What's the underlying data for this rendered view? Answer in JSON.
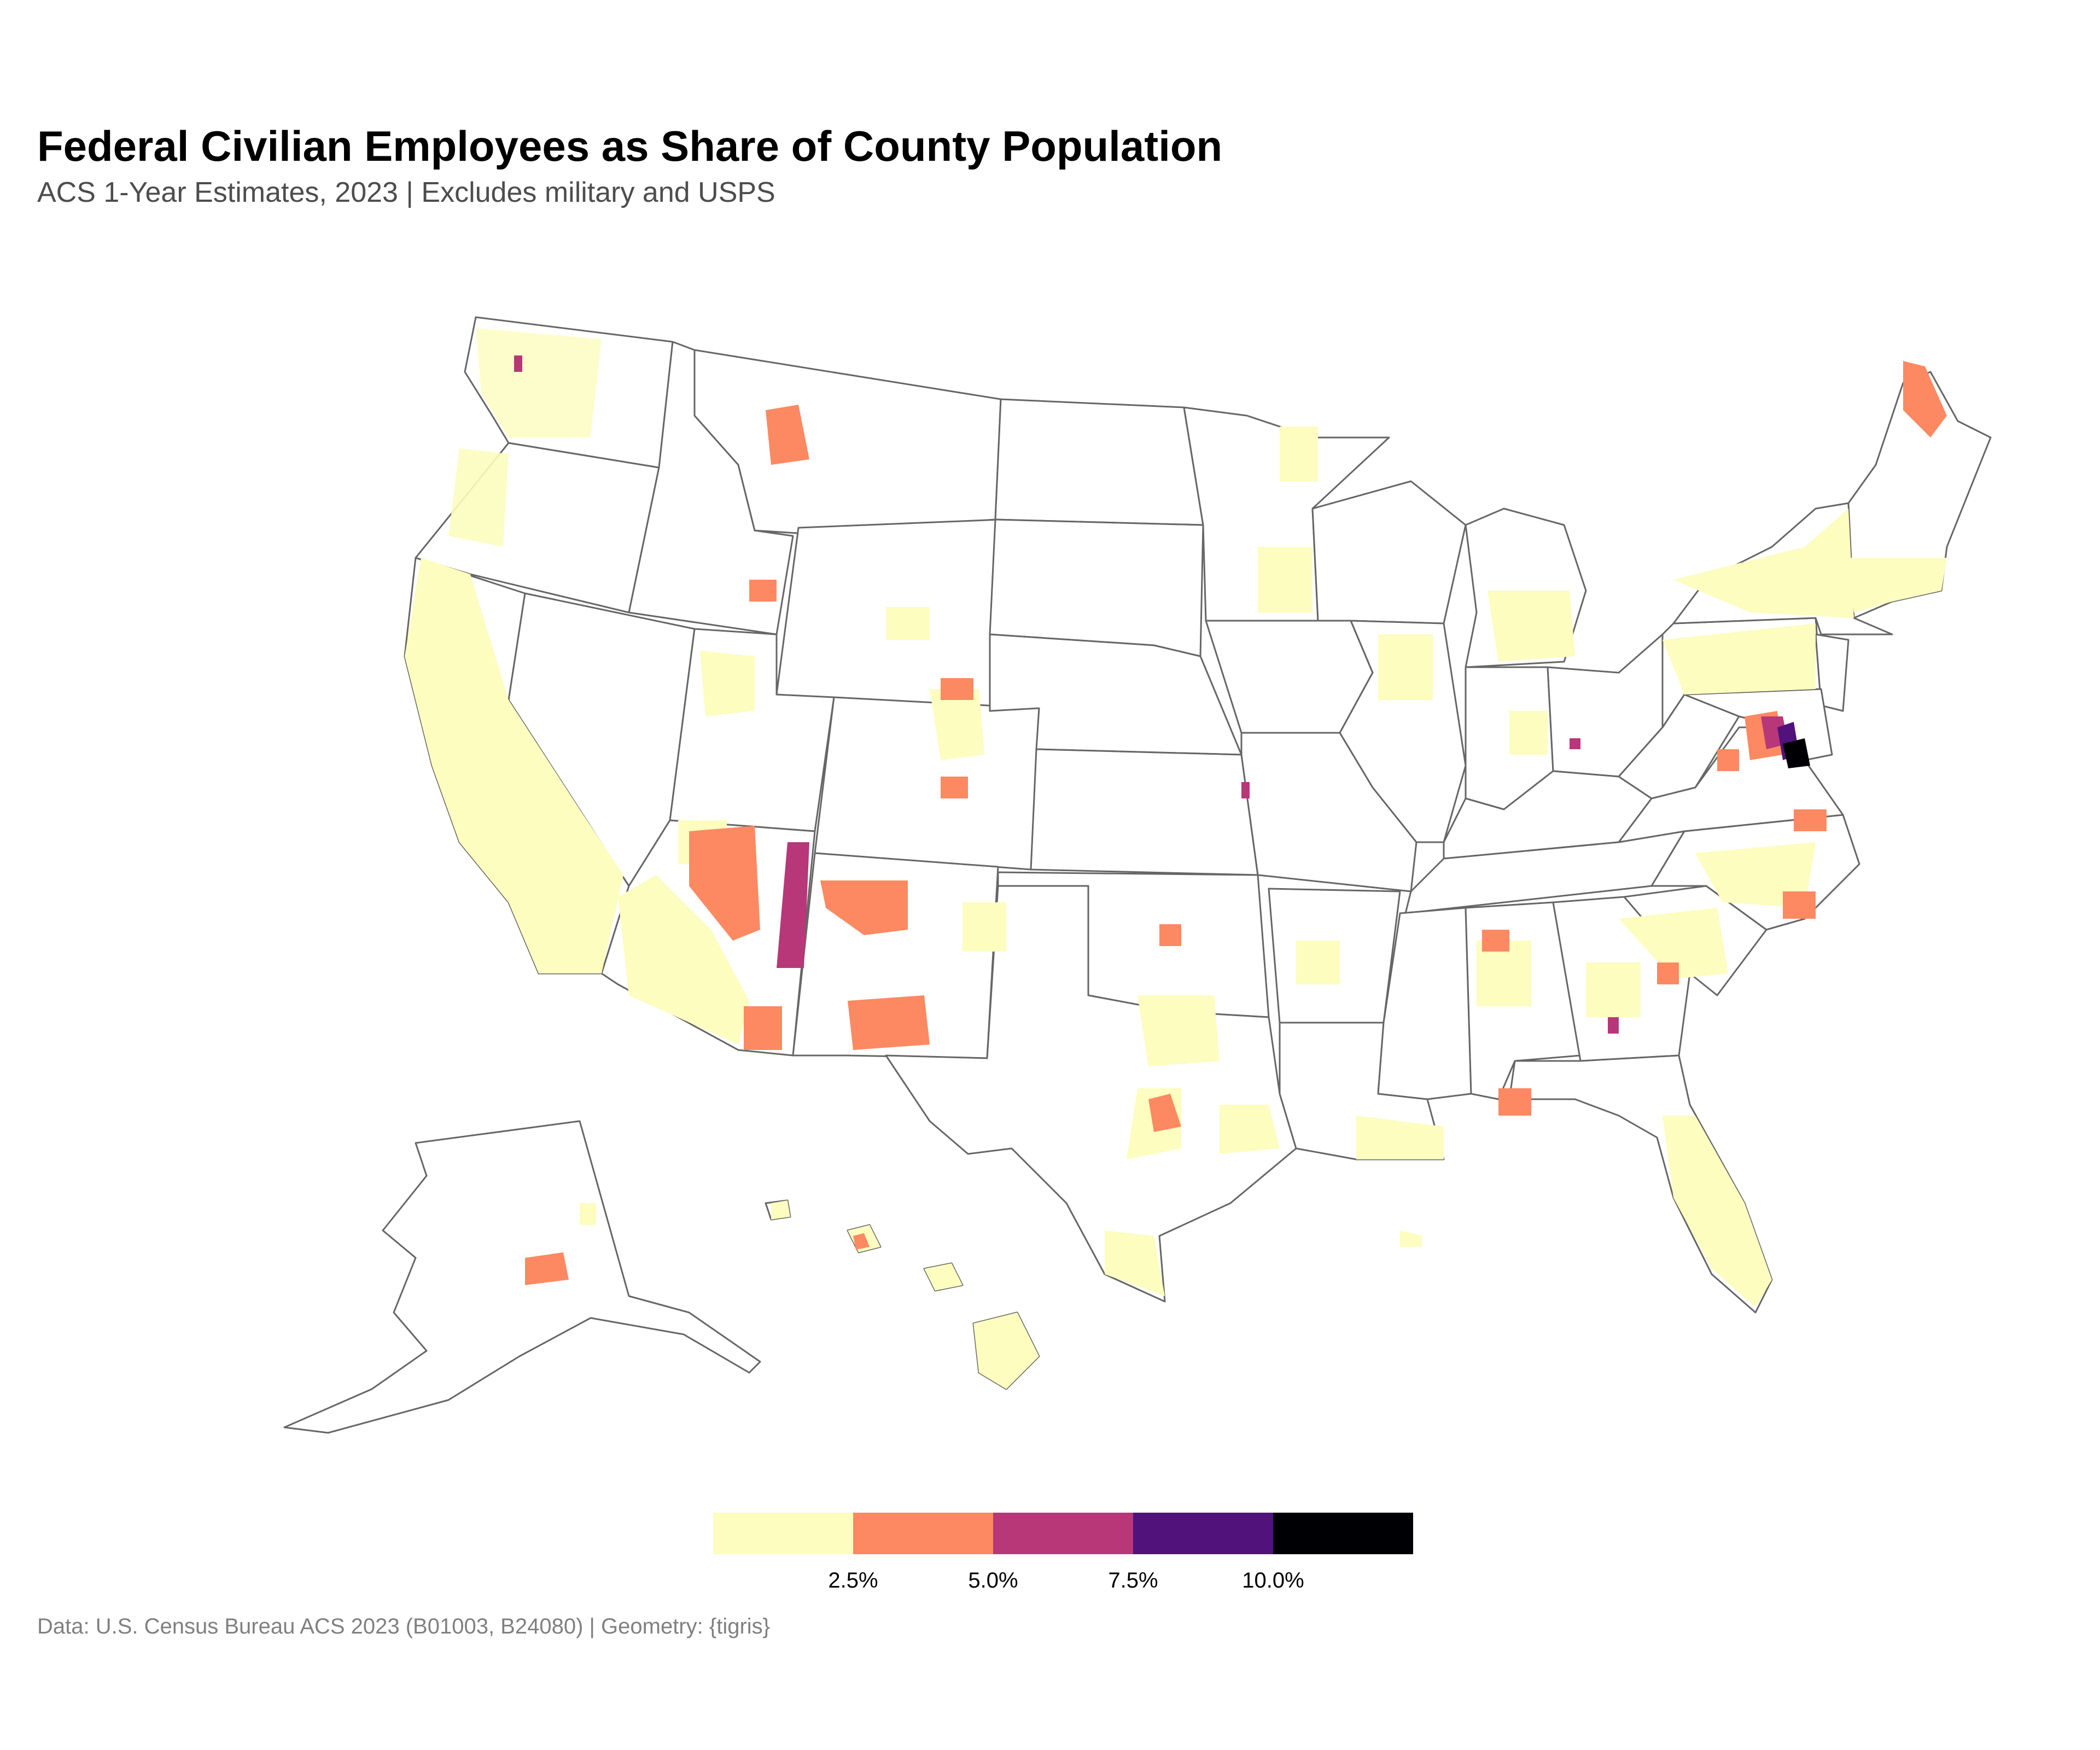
{
  "title": "Federal Civilian Employees as Share of County Population",
  "subtitle": "ACS 1-Year Estimates, 2023 | Excludes military and USPS",
  "caption": "Data: U.S. Census Bureau ACS 2023 (B01003, B24080) | Geometry: {tigris}",
  "legend": {
    "bins": [
      {
        "range": "0–2.5%",
        "color": "#FCFDBF"
      },
      {
        "range": "2.5–5.0%",
        "color": "#FC8961"
      },
      {
        "range": "5.0–7.5%",
        "color": "#B73779"
      },
      {
        "range": "7.5–10.0%",
        "color": "#51127C"
      },
      {
        "range": "10.0%+",
        "color": "#000004"
      }
    ],
    "ticks": [
      "2.5%",
      "5.0%",
      "7.5%",
      "10.0%"
    ]
  },
  "colors": {
    "boundary": "#666666",
    "background": "#ffffff",
    "empty": "#ffffff"
  },
  "chart_data": {
    "type": "choropleth",
    "variable": "federal civilian employees / county population",
    "scale": "binned sequential (magma, reversed)",
    "breaks": [
      2.5,
      5.0,
      7.5,
      10.0
    ],
    "highlights": [
      {
        "area": "Washington DC metro / Northern Virginia",
        "bin": "10.0%+"
      },
      {
        "area": "Maryland suburbs of DC",
        "bin": "7.5–10.0%"
      },
      {
        "area": "Apache County, Arizona",
        "bin": "5.0–7.5%"
      },
      {
        "area": "Georgia county near Warner Robins",
        "bin": "5.0–7.5%"
      },
      {
        "area": "Puget Sound, Washington",
        "bin": "5.0–7.5%"
      },
      {
        "area": "Leavenworth, Kansas",
        "bin": "5.0–7.5%"
      },
      {
        "area": "Northern Maine (Aroostook)",
        "bin": "2.5–5.0%"
      },
      {
        "area": "Honolulu, Hawaii",
        "bin": "2.5–5.0%"
      },
      {
        "area": "Anchorage, Alaska",
        "bin": "2.5–5.0%"
      }
    ]
  }
}
